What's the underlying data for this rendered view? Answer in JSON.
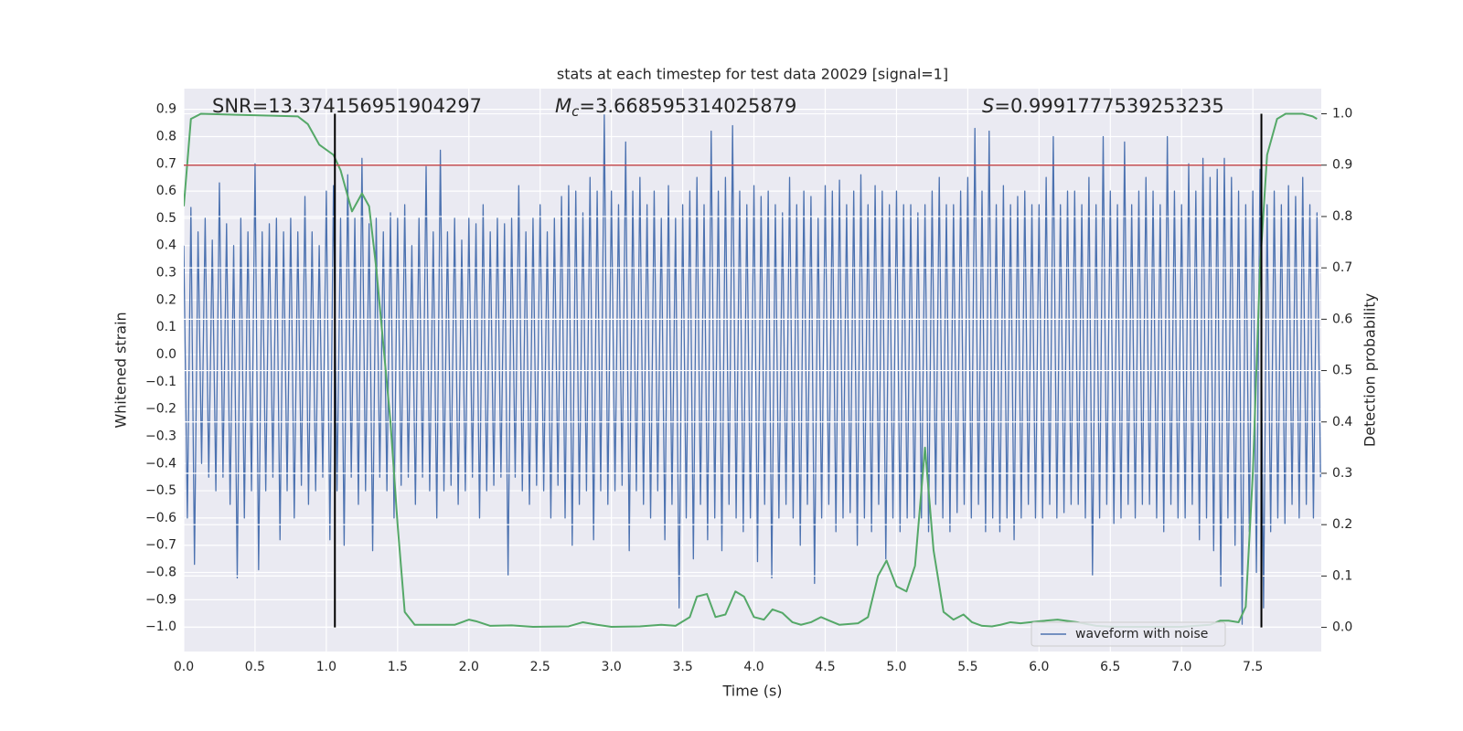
{
  "chart_data": {
    "type": "line",
    "title": "stats at each timestep for test data 20029 [signal=1]",
    "xlabel": "Time (s)",
    "ylabel": "Whitened strain",
    "y2label": "Detection probability",
    "xlim": [
      0,
      7.98
    ],
    "ylim": [
      -1.09,
      0.976
    ],
    "y2lim": [
      -0.047,
      1.049
    ],
    "xticks": [
      {
        "value": 0,
        "label": "0.0"
      },
      0.5,
      {
        "value": 1,
        "label": "1.0"
      },
      1.5,
      {
        "value": 2,
        "label": "2.0"
      },
      2.5,
      {
        "value": 3,
        "label": "3.0"
      },
      3.5,
      {
        "value": 4,
        "label": "4.0"
      },
      4.5,
      {
        "value": 5,
        "label": "5.0"
      },
      5.5,
      {
        "value": 6,
        "label": "6.0"
      },
      6.5,
      {
        "value": 7,
        "label": "7.0"
      },
      7.5
    ],
    "yticks": [
      {
        "value": -1,
        "label": "−1.0"
      },
      {
        "value": -0.9,
        "label": "−0.9"
      },
      {
        "value": -0.8,
        "label": "−0.8"
      },
      {
        "value": -0.7,
        "label": "−0.7"
      },
      {
        "value": -0.6,
        "label": "−0.6"
      },
      {
        "value": -0.5,
        "label": "−0.5"
      },
      {
        "value": -0.4,
        "label": "−0.4"
      },
      {
        "value": -0.3,
        "label": "−0.3"
      },
      {
        "value": -0.2,
        "label": "−0.2"
      },
      {
        "value": -0.1,
        "label": "−0.1"
      },
      {
        "value": 0,
        "label": "0.0"
      },
      0.1,
      0.2,
      0.3,
      0.4,
      0.5,
      0.6,
      0.7,
      0.8,
      0.9
    ],
    "y2ticks": [
      {
        "value": 0,
        "label": "0.0"
      },
      0.1,
      0.2,
      0.3,
      0.4,
      0.5,
      0.6,
      0.7,
      0.8,
      0.9,
      {
        "value": 1,
        "label": "1.0"
      }
    ],
    "grid": true,
    "legend": "lower right",
    "annotations": [
      {
        "text": "SNR=13.374156951904297"
      },
      {
        "symbol": "M",
        "subscript": "c",
        "text": "=3.668595314025879"
      },
      {
        "symbol": "S",
        "text": "=0.9991777539253235"
      }
    ],
    "hlines": [
      {
        "y": 0.9,
        "axis": "y2",
        "color": "#c44e52"
      }
    ],
    "vlines": [
      {
        "x": 1.06,
        "ymin": 0,
        "ymax": 1,
        "axis": "y2",
        "color": "#000000"
      },
      {
        "x": 7.56,
        "ymin": 0,
        "ymax": 1,
        "axis": "y2",
        "color": "#000000"
      }
    ],
    "series": [
      {
        "name": "waveform with noise",
        "color": "#4c72b0",
        "x": [
          0,
          0.025,
          0.05,
          0.075,
          0.1,
          0.125,
          0.15,
          0.175,
          0.2,
          0.225,
          0.25,
          0.275,
          0.3,
          0.325,
          0.35,
          0.375,
          0.4,
          0.425,
          0.45,
          0.475,
          0.5,
          0.525,
          0.55,
          0.575,
          0.6,
          0.625,
          0.65,
          0.675,
          0.7,
          0.725,
          0.75,
          0.775,
          0.8,
          0.825,
          0.85,
          0.875,
          0.9,
          0.925,
          0.95,
          0.975,
          1,
          1.025,
          1.05,
          1.075,
          1.1,
          1.125,
          1.15,
          1.175,
          1.2,
          1.225,
          1.25,
          1.275,
          1.3,
          1.325,
          1.35,
          1.375,
          1.4,
          1.425,
          1.45,
          1.475,
          1.5,
          1.525,
          1.55,
          1.575,
          1.6,
          1.625,
          1.65,
          1.675,
          1.7,
          1.725,
          1.75,
          1.775,
          1.8,
          1.825,
          1.85,
          1.875,
          1.9,
          1.925,
          1.95,
          1.975,
          2,
          2.025,
          2.05,
          2.075,
          2.1,
          2.125,
          2.15,
          2.175,
          2.2,
          2.225,
          2.25,
          2.275,
          2.3,
          2.325,
          2.35,
          2.375,
          2.4,
          2.425,
          2.45,
          2.475,
          2.5,
          2.525,
          2.55,
          2.575,
          2.6,
          2.625,
          2.65,
          2.675,
          2.7,
          2.725,
          2.75,
          2.775,
          2.8,
          2.825,
          2.85,
          2.875,
          2.9,
          2.925,
          2.95,
          2.975,
          3,
          3.025,
          3.05,
          3.075,
          3.1,
          3.125,
          3.15,
          3.175,
          3.2,
          3.225,
          3.25,
          3.275,
          3.3,
          3.325,
          3.35,
          3.375,
          3.4,
          3.425,
          3.45,
          3.475,
          3.5,
          3.525,
          3.55,
          3.575,
          3.6,
          3.625,
          3.65,
          3.675,
          3.7,
          3.725,
          3.75,
          3.775,
          3.8,
          3.825,
          3.85,
          3.875,
          3.9,
          3.925,
          3.95,
          3.975,
          4,
          4.025,
          4.05,
          4.075,
          4.1,
          4.125,
          4.15,
          4.175,
          4.2,
          4.225,
          4.25,
          4.275,
          4.3,
          4.325,
          4.35,
          4.375,
          4.4,
          4.425,
          4.45,
          4.475,
          4.5,
          4.525,
          4.55,
          4.575,
          4.6,
          4.625,
          4.65,
          4.675,
          4.7,
          4.725,
          4.75,
          4.775,
          4.8,
          4.825,
          4.85,
          4.875,
          4.9,
          4.925,
          4.95,
          4.975,
          5,
          5.025,
          5.05,
          5.075,
          5.1,
          5.125,
          5.15,
          5.175,
          5.2,
          5.225,
          5.25,
          5.275,
          5.3,
          5.325,
          5.35,
          5.375,
          5.4,
          5.425,
          5.45,
          5.475,
          5.5,
          5.525,
          5.55,
          5.575,
          5.6,
          5.625,
          5.65,
          5.675,
          5.7,
          5.725,
          5.75,
          5.775,
          5.8,
          5.825,
          5.85,
          5.875,
          5.9,
          5.925,
          5.95,
          5.975,
          6,
          6.025,
          6.05,
          6.075,
          6.1,
          6.125,
          6.15,
          6.175,
          6.2,
          6.225,
          6.25,
          6.275,
          6.3,
          6.325,
          6.35,
          6.375,
          6.4,
          6.425,
          6.45,
          6.475,
          6.5,
          6.525,
          6.55,
          6.575,
          6.6,
          6.625,
          6.65,
          6.675,
          6.7,
          6.725,
          6.75,
          6.775,
          6.8,
          6.825,
          6.85,
          6.875,
          6.9,
          6.925,
          6.95,
          6.975,
          7,
          7.025,
          7.05,
          7.075,
          7.1,
          7.125,
          7.15,
          7.175,
          7.2,
          7.225,
          7.25,
          7.275,
          7.3,
          7.325,
          7.35,
          7.375,
          7.4,
          7.425,
          7.45,
          7.475,
          7.5,
          7.525,
          7.55,
          7.575,
          7.6,
          7.625,
          7.65,
          7.675,
          7.7,
          7.725,
          7.75,
          7.775,
          7.8,
          7.825,
          7.85,
          7.875,
          7.9,
          7.925,
          7.95,
          7.975
        ],
        "values": [
          0.4,
          -0.6,
          0.54,
          -0.77,
          0.45,
          -0.4,
          0.5,
          -0.45,
          0.42,
          -0.5,
          0.63,
          -0.45,
          0.48,
          -0.55,
          0.4,
          -0.82,
          0.5,
          -0.6,
          0.45,
          -0.5,
          0.7,
          -0.79,
          0.45,
          -0.5,
          0.48,
          -0.45,
          0.5,
          -0.68,
          0.45,
          -0.5,
          0.5,
          -0.6,
          0.45,
          -0.48,
          0.58,
          -0.55,
          0.45,
          -0.5,
          0.4,
          -0.45,
          0.6,
          -0.68,
          0.62,
          -0.5,
          0.5,
          -0.7,
          0.66,
          -0.45,
          0.5,
          -0.55,
          0.72,
          -0.5,
          0.48,
          -0.72,
          0.5,
          -0.45,
          0.45,
          -0.5,
          0.52,
          -0.6,
          0.5,
          -0.48,
          0.55,
          -0.45,
          0.4,
          -0.55,
          0.5,
          -0.45,
          0.69,
          -0.5,
          0.45,
          -0.6,
          0.75,
          -0.5,
          0.45,
          -0.48,
          0.5,
          -0.55,
          0.42,
          -0.5,
          0.5,
          -0.45,
          0.48,
          -0.6,
          0.55,
          -0.5,
          0.45,
          -0.48,
          0.5,
          -0.45,
          0.48,
          -0.81,
          0.5,
          -0.45,
          0.62,
          -0.5,
          0.45,
          -0.55,
          0.5,
          -0.48,
          0.55,
          -0.5,
          0.45,
          -0.6,
          0.5,
          -0.48,
          0.58,
          -0.6,
          0.62,
          -0.7,
          0.6,
          -0.55,
          0.52,
          -0.5,
          0.65,
          -0.68,
          0.6,
          -0.5,
          0.88,
          -0.55,
          0.6,
          -0.5,
          0.55,
          -0.48,
          0.78,
          -0.72,
          0.6,
          -0.5,
          0.65,
          -0.55,
          0.55,
          -0.6,
          0.6,
          -0.5,
          0.5,
          -0.68,
          0.62,
          -0.55,
          0.5,
          -0.93,
          0.55,
          -0.6,
          0.6,
          -0.75,
          0.65,
          -0.55,
          0.55,
          -0.68,
          0.82,
          -0.6,
          0.6,
          -0.72,
          0.65,
          -0.55,
          0.84,
          -0.6,
          0.6,
          -0.65,
          0.55,
          -0.6,
          0.62,
          -0.76,
          0.58,
          -0.55,
          0.6,
          -0.82,
          0.55,
          -0.6,
          0.52,
          -0.55,
          0.65,
          -0.6,
          0.55,
          -0.7,
          0.6,
          -0.55,
          0.58,
          -0.84,
          0.5,
          -0.6,
          0.62,
          -0.55,
          0.6,
          -0.65,
          0.64,
          -0.6,
          0.55,
          -0.58,
          0.6,
          -0.7,
          0.66,
          -0.6,
          0.55,
          -0.65,
          0.62,
          -0.55,
          0.6,
          -0.75,
          0.55,
          -0.6,
          0.6,
          -0.65,
          0.55,
          -0.6,
          0.55,
          -0.6,
          0.52,
          -0.6,
          0.55,
          -0.65,
          0.6,
          -0.55,
          0.65,
          -0.6,
          0.55,
          -0.65,
          0.55,
          -0.58,
          0.6,
          -0.55,
          0.65,
          -0.6,
          0.83,
          -0.55,
          0.6,
          -0.65,
          0.82,
          -0.6,
          0.55,
          -0.65,
          0.62,
          -0.6,
          0.55,
          -0.68,
          0.58,
          -0.6,
          0.6,
          -0.55,
          0.55,
          -0.6,
          0.55,
          -0.6,
          0.65,
          -0.55,
          0.8,
          -0.6,
          0.55,
          -0.58,
          0.6,
          -0.55,
          0.6,
          -0.55,
          0.55,
          -0.6,
          0.65,
          -0.81,
          0.55,
          -0.6,
          0.8,
          -0.55,
          0.6,
          -0.62,
          0.55,
          -0.6,
          0.78,
          -0.55,
          0.55,
          -0.6,
          0.6,
          -0.55,
          0.65,
          -0.55,
          0.6,
          -0.6,
          0.55,
          -0.65,
          0.8,
          -0.55,
          0.6,
          -0.6,
          0.55,
          -0.6,
          0.7,
          -0.55,
          0.6,
          -0.68,
          0.72,
          -0.6,
          0.65,
          -0.72,
          0.68,
          -0.85,
          0.72,
          -0.6,
          0.65,
          -0.7,
          0.6,
          -0.99,
          0.55,
          -0.65,
          0.6,
          -0.8,
          0.68,
          -0.93,
          0.55,
          -0.65,
          0.6,
          -0.6,
          0.55,
          -0.62,
          0.62,
          -0.55,
          0.58,
          -0.6,
          0.65,
          -0.55,
          0.55,
          -0.6,
          0.52,
          -0.45
        ]
      },
      {
        "color": "#55a868",
        "axis": "y2",
        "x": [
          0,
          0.05,
          0.12,
          0.8,
          0.87,
          0.95,
          1.05,
          1.1,
          1.15,
          1.18,
          1.2,
          1.25,
          1.3,
          1.35,
          1.45,
          1.5,
          1.55,
          1.62,
          1.9,
          2.0,
          2.05,
          2.15,
          2.3,
          2.45,
          2.7,
          2.8,
          2.9,
          3.0,
          3.2,
          3.35,
          3.45,
          3.55,
          3.6,
          3.67,
          3.73,
          3.8,
          3.87,
          3.93,
          4.0,
          4.07,
          4.13,
          4.2,
          4.27,
          4.33,
          4.4,
          4.47,
          4.53,
          4.6,
          4.73,
          4.8,
          4.87,
          4.93,
          5.0,
          5.07,
          5.13,
          5.2,
          5.26,
          5.33,
          5.4,
          5.47,
          5.53,
          5.6,
          5.67,
          5.73,
          5.8,
          5.87,
          6.0,
          6.13,
          6.27,
          6.4,
          6.53,
          6.67,
          7.0,
          7.2,
          7.27,
          7.33,
          7.4,
          7.45,
          7.5,
          7.55,
          7.6,
          7.67,
          7.73,
          7.85,
          7.92,
          7.95
        ],
        "values": [
          0.82,
          0.99,
          1.0,
          0.995,
          0.98,
          0.94,
          0.92,
          0.89,
          0.84,
          0.81,
          0.82,
          0.845,
          0.82,
          0.7,
          0.4,
          0.2,
          0.03,
          0.005,
          0.005,
          0.015,
          0.012,
          0.003,
          0.004,
          0.001,
          0.002,
          0.01,
          0.005,
          0.001,
          0.002,
          0.005,
          0.003,
          0.02,
          0.06,
          0.065,
          0.02,
          0.025,
          0.07,
          0.06,
          0.02,
          0.015,
          0.035,
          0.028,
          0.01,
          0.005,
          0.01,
          0.02,
          0.013,
          0.005,
          0.008,
          0.02,
          0.1,
          0.13,
          0.08,
          0.07,
          0.12,
          0.35,
          0.15,
          0.03,
          0.015,
          0.025,
          0.01,
          0.003,
          0.002,
          0.005,
          0.01,
          0.008,
          0.012,
          0.015,
          0.01,
          0.003,
          0.001,
          0.001,
          0.001,
          0.005,
          0.013,
          0.013,
          0.01,
          0.04,
          0.3,
          0.7,
          0.92,
          0.99,
          1.0,
          1.0,
          0.995,
          0.99
        ]
      }
    ]
  }
}
